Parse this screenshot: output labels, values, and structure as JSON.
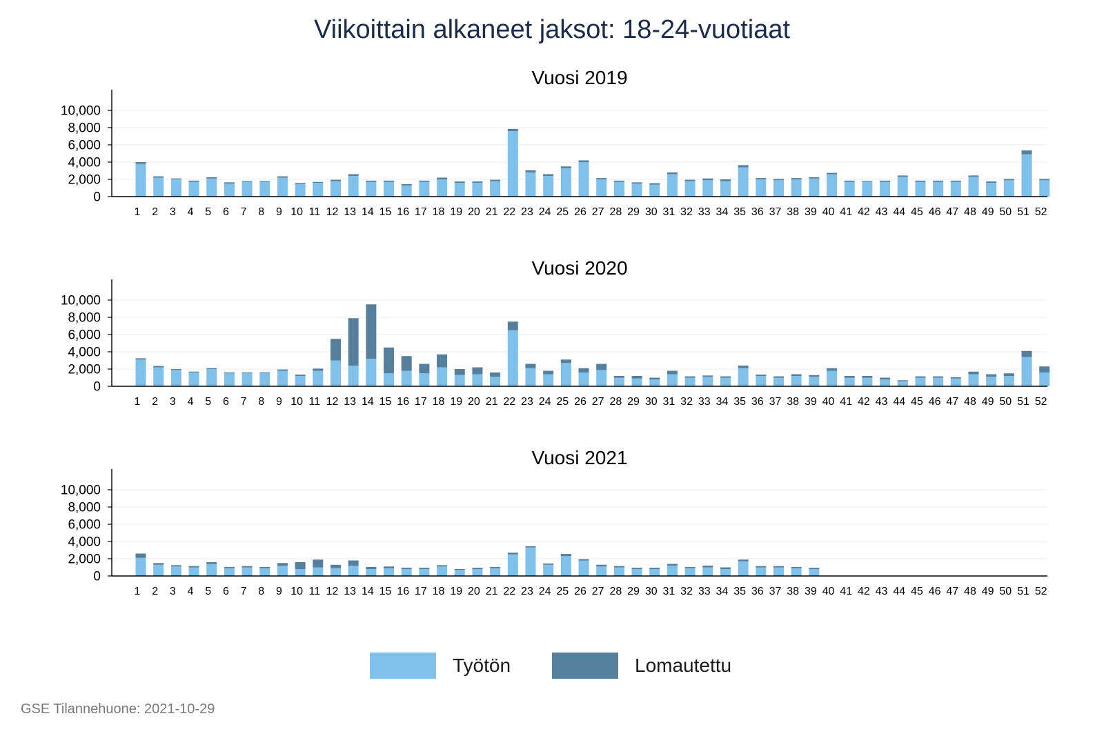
{
  "title": "Viikoittain alkaneet jaksot: 18-24-vuotiaat",
  "footer": "GSE Tilannehuone: 2021-10-29",
  "colors": {
    "tyoton": "#7fc1ea",
    "lomautettu": "#567f9c"
  },
  "legend": [
    {
      "label": "Työtön",
      "color": "#7fc1ea"
    },
    {
      "label": "Lomautettu",
      "color": "#567f9c"
    }
  ],
  "chart_data": [
    {
      "type": "bar",
      "stacked": true,
      "title": "Vuosi 2019",
      "xlabel": "",
      "ylabel": "",
      "ylim": [
        0,
        12000
      ],
      "yticks": [
        "0",
        "2,000",
        "4,000",
        "6,000",
        "8,000",
        "10,000"
      ],
      "grid": true,
      "categories": [
        "1",
        "2",
        "3",
        "4",
        "5",
        "6",
        "7",
        "8",
        "9",
        "10",
        "11",
        "12",
        "13",
        "14",
        "15",
        "16",
        "17",
        "18",
        "19",
        "20",
        "21",
        "22",
        "23",
        "24",
        "25",
        "26",
        "27",
        "28",
        "29",
        "30",
        "31",
        "32",
        "33",
        "34",
        "35",
        "36",
        "37",
        "38",
        "39",
        "40",
        "41",
        "42",
        "43",
        "44",
        "45",
        "46",
        "47",
        "48",
        "49",
        "50",
        "51",
        "52"
      ],
      "series": [
        {
          "name": "Työtön",
          "values": [
            3800,
            2200,
            2000,
            1700,
            2100,
            1500,
            1700,
            1700,
            2200,
            1500,
            1600,
            1800,
            2400,
            1700,
            1700,
            1300,
            1700,
            2000,
            1600,
            1600,
            1800,
            7600,
            2800,
            2400,
            3300,
            4000,
            2000,
            1700,
            1500,
            1400,
            2600,
            1800,
            1900,
            1800,
            3400,
            2000,
            1900,
            2000,
            2100,
            2600,
            1700,
            1700,
            1700,
            2300,
            1700,
            1700,
            1700,
            2300,
            1600,
            1900,
            4900,
            1900
          ]
        },
        {
          "name": "Lomautettu",
          "values": [
            200,
            150,
            100,
            150,
            150,
            150,
            100,
            100,
            150,
            100,
            100,
            150,
            200,
            150,
            150,
            150,
            150,
            200,
            150,
            150,
            150,
            250,
            250,
            200,
            200,
            200,
            150,
            150,
            150,
            150,
            200,
            150,
            200,
            200,
            250,
            150,
            150,
            150,
            150,
            150,
            150,
            100,
            150,
            150,
            150,
            150,
            150,
            150,
            150,
            150,
            450,
            150
          ]
        }
      ]
    },
    {
      "type": "bar",
      "stacked": true,
      "title": "Vuosi 2020",
      "xlabel": "",
      "ylabel": "",
      "ylim": [
        0,
        12000
      ],
      "yticks": [
        "0",
        "2,000",
        "4,000",
        "6,000",
        "8,000",
        "10,000"
      ],
      "grid": true,
      "categories": [
        "1",
        "2",
        "3",
        "4",
        "5",
        "6",
        "7",
        "8",
        "9",
        "10",
        "11",
        "12",
        "13",
        "14",
        "15",
        "16",
        "17",
        "18",
        "19",
        "20",
        "21",
        "22",
        "23",
        "24",
        "25",
        "26",
        "27",
        "28",
        "29",
        "30",
        "31",
        "32",
        "33",
        "34",
        "35",
        "36",
        "37",
        "38",
        "39",
        "40",
        "41",
        "42",
        "43",
        "44",
        "45",
        "46",
        "47",
        "48",
        "49",
        "50",
        "51",
        "52"
      ],
      "series": [
        {
          "name": "Työtön",
          "values": [
            3100,
            2200,
            1900,
            1600,
            2000,
            1500,
            1500,
            1500,
            1800,
            1200,
            1800,
            3000,
            2400,
            3200,
            1500,
            1800,
            1500,
            2200,
            1300,
            1400,
            1100,
            6500,
            2100,
            1400,
            2700,
            1600,
            1900,
            1000,
            900,
            800,
            1400,
            1000,
            1100,
            1000,
            2100,
            1200,
            1000,
            1200,
            1100,
            1800,
            1000,
            1000,
            800,
            600,
            1000,
            1000,
            900,
            1400,
            1100,
            1200,
            3400,
            1600
          ]
        },
        {
          "name": "Lomautettu",
          "values": [
            150,
            150,
            100,
            100,
            100,
            100,
            100,
            100,
            150,
            150,
            250,
            2500,
            5500,
            6300,
            3000,
            1700,
            1100,
            1500,
            700,
            800,
            500,
            1000,
            500,
            400,
            400,
            500,
            700,
            200,
            300,
            200,
            400,
            150,
            150,
            150,
            300,
            150,
            150,
            200,
            200,
            300,
            200,
            200,
            200,
            100,
            150,
            150,
            150,
            300,
            300,
            300,
            700,
            700
          ]
        }
      ]
    },
    {
      "type": "bar",
      "stacked": true,
      "title": "Vuosi 2021",
      "xlabel": "",
      "ylabel": "",
      "ylim": [
        0,
        12000
      ],
      "yticks": [
        "0",
        "2,000",
        "4,000",
        "6,000",
        "8,000",
        "10,000"
      ],
      "grid": true,
      "categories": [
        "1",
        "2",
        "3",
        "4",
        "5",
        "6",
        "7",
        "8",
        "9",
        "10",
        "11",
        "12",
        "13",
        "14",
        "15",
        "16",
        "17",
        "18",
        "19",
        "20",
        "21",
        "22",
        "23",
        "24",
        "25",
        "26",
        "27",
        "28",
        "29",
        "30",
        "31",
        "32",
        "33",
        "34",
        "35",
        "36",
        "37",
        "38",
        "39",
        "40",
        "41",
        "42",
        "43",
        "44",
        "45",
        "46",
        "47",
        "48",
        "49",
        "50",
        "51",
        "52"
      ],
      "series": [
        {
          "name": "Työtön",
          "values": [
            2100,
            1300,
            1100,
            1000,
            1400,
            900,
            1000,
            900,
            1200,
            800,
            1000,
            900,
            1200,
            800,
            900,
            800,
            800,
            1100,
            700,
            800,
            900,
            2500,
            3300,
            1300,
            2300,
            1800,
            1100,
            1000,
            800,
            800,
            1200,
            900,
            1000,
            800,
            1700,
            1000,
            1000,
            900,
            800,
            null,
            null,
            null,
            null,
            null,
            null,
            null,
            null,
            null,
            null,
            null,
            null,
            null
          ]
        },
        {
          "name": "Lomautettu",
          "values": [
            500,
            200,
            150,
            150,
            200,
            150,
            150,
            150,
            300,
            800,
            900,
            400,
            600,
            250,
            200,
            150,
            150,
            150,
            100,
            150,
            150,
            200,
            150,
            150,
            250,
            150,
            200,
            150,
            150,
            150,
            200,
            150,
            200,
            200,
            200,
            150,
            150,
            150,
            150,
            null,
            null,
            null,
            null,
            null,
            null,
            null,
            null,
            null,
            null,
            null,
            null,
            null
          ]
        }
      ]
    }
  ]
}
